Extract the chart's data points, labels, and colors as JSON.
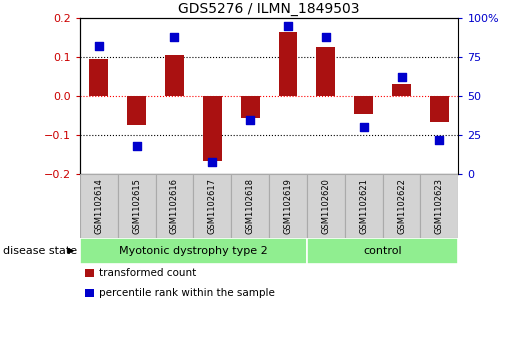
{
  "title": "GDS5276 / ILMN_1849503",
  "samples": [
    "GSM1102614",
    "GSM1102615",
    "GSM1102616",
    "GSM1102617",
    "GSM1102618",
    "GSM1102619",
    "GSM1102620",
    "GSM1102621",
    "GSM1102622",
    "GSM1102623"
  ],
  "transformed_count": [
    0.095,
    -0.075,
    0.105,
    -0.165,
    -0.055,
    0.165,
    0.125,
    -0.045,
    0.03,
    -0.065
  ],
  "percentile_rank": [
    82,
    18,
    88,
    8,
    35,
    95,
    88,
    30,
    62,
    22
  ],
  "disease_groups": [
    {
      "label": "Myotonic dystrophy type 2",
      "start": 0,
      "end": 6,
      "color": "#90EE90"
    },
    {
      "label": "control",
      "start": 6,
      "end": 10,
      "color": "#90EE90"
    }
  ],
  "bar_color": "#AA1111",
  "scatter_color": "#0000CC",
  "ylim_left": [
    -0.2,
    0.2
  ],
  "ylim_right": [
    0,
    100
  ],
  "yticks_left": [
    -0.2,
    -0.1,
    0.0,
    0.1,
    0.2
  ],
  "yticks_right": [
    0,
    25,
    50,
    75,
    100
  ],
  "hlines": [
    0.1,
    0.0,
    -0.1
  ],
  "hline_colors": [
    "black",
    "red",
    "black"
  ],
  "hline_styles": [
    "dotted",
    "dotted",
    "dotted"
  ],
  "legend_items": [
    {
      "label": "transformed count",
      "color": "#AA1111"
    },
    {
      "label": "percentile rank within the sample",
      "color": "#0000CC"
    }
  ],
  "disease_label": "disease state",
  "tick_color_left": "#CC0000",
  "tick_color_right": "#0000CC",
  "bar_width": 0.5,
  "scatter_marker_size": 35,
  "label_box_color": "#D3D3D3",
  "label_box_edge": "#AAAAAA"
}
